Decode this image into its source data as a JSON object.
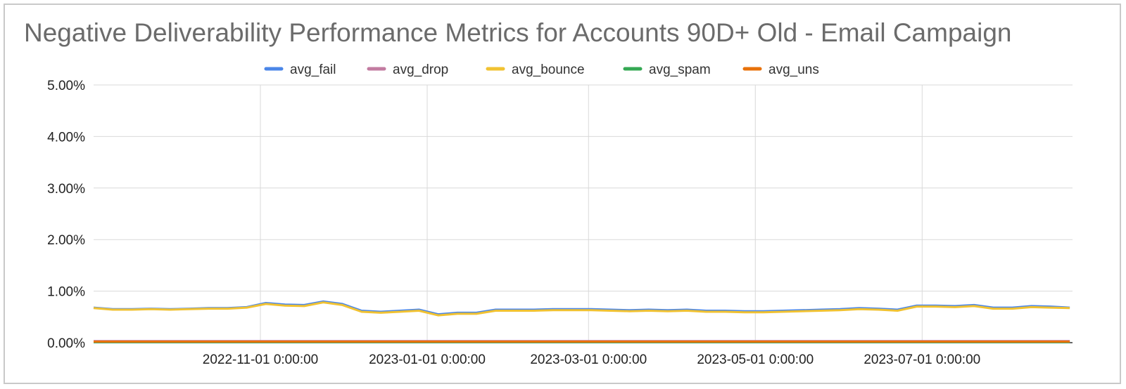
{
  "chart_data": {
    "type": "line",
    "title": "Negative Deliverability Performance Metrics for Accounts 90D+ Old - Email Campaign",
    "xlabel": "",
    "ylabel": "",
    "ylim": [
      0,
      0.05
    ],
    "yticks": [
      "0.00%",
      "1.00%",
      "2.00%",
      "3.00%",
      "4.00%",
      "5.00%"
    ],
    "x_start": "2022-09-01",
    "x_end": "2023-08-25",
    "xticks": [
      {
        "date": "2022-11-01",
        "label": "2022-11-01 0:00:00"
      },
      {
        "date": "2023-01-01",
        "label": "2023-01-01 0:00:00"
      },
      {
        "date": "2023-03-01",
        "label": "2023-03-01 0:00:00"
      },
      {
        "date": "2023-05-01",
        "label": "2023-05-01 0:00:00"
      },
      {
        "date": "2023-07-01",
        "label": "2023-07-01 0:00:00"
      }
    ],
    "grid": true,
    "legend_position": "top",
    "x": [
      "2022-09-01",
      "2022-09-08",
      "2022-09-15",
      "2022-09-22",
      "2022-09-29",
      "2022-10-06",
      "2022-10-13",
      "2022-10-20",
      "2022-10-27",
      "2022-11-03",
      "2022-11-10",
      "2022-11-17",
      "2022-11-24",
      "2022-12-01",
      "2022-12-08",
      "2022-12-15",
      "2022-12-22",
      "2022-12-29",
      "2023-01-05",
      "2023-01-12",
      "2023-01-19",
      "2023-01-26",
      "2023-02-02",
      "2023-02-09",
      "2023-02-16",
      "2023-02-23",
      "2023-03-02",
      "2023-03-09",
      "2023-03-16",
      "2023-03-23",
      "2023-03-30",
      "2023-04-06",
      "2023-04-13",
      "2023-04-20",
      "2023-04-27",
      "2023-05-04",
      "2023-05-11",
      "2023-05-18",
      "2023-05-25",
      "2023-06-01",
      "2023-06-08",
      "2023-06-15",
      "2023-06-22",
      "2023-06-29",
      "2023-07-06",
      "2023-07-13",
      "2023-07-20",
      "2023-07-27",
      "2023-08-03",
      "2023-08-10",
      "2023-08-17",
      "2023-08-24"
    ],
    "series": [
      {
        "name": "avg_fail",
        "color": "#4a86e8",
        "values": [
          0.0068,
          0.0065,
          0.0065,
          0.0066,
          0.0065,
          0.0066,
          0.0067,
          0.0067,
          0.0069,
          0.0077,
          0.0074,
          0.0073,
          0.008,
          0.0075,
          0.0062,
          0.006,
          0.0062,
          0.0064,
          0.0055,
          0.0058,
          0.0058,
          0.0064,
          0.0064,
          0.0064,
          0.0065,
          0.0065,
          0.0065,
          0.0064,
          0.0063,
          0.0064,
          0.0063,
          0.0064,
          0.0062,
          0.0062,
          0.0061,
          0.0061,
          0.0062,
          0.0063,
          0.0064,
          0.0065,
          0.0067,
          0.0066,
          0.0064,
          0.0072,
          0.0072,
          0.0071,
          0.0073,
          0.0068,
          0.0068,
          0.0071,
          0.007,
          0.0068
        ]
      },
      {
        "name": "avg_drop",
        "color": "#c27ba0",
        "values": [
          0.0003,
          0.0003,
          0.0003,
          0.0003,
          0.0003,
          0.0003,
          0.0003,
          0.0003,
          0.0003,
          0.0003,
          0.0003,
          0.0003,
          0.0003,
          0.0003,
          0.0003,
          0.0003,
          0.0003,
          0.0003,
          0.0003,
          0.0003,
          0.0003,
          0.0003,
          0.0003,
          0.0003,
          0.0003,
          0.0003,
          0.0003,
          0.0003,
          0.0003,
          0.0003,
          0.0003,
          0.0003,
          0.0003,
          0.0003,
          0.0003,
          0.0003,
          0.0003,
          0.0003,
          0.0003,
          0.0003,
          0.0003,
          0.0003,
          0.0003,
          0.0003,
          0.0003,
          0.0003,
          0.0003,
          0.0003,
          0.0003,
          0.0003,
          0.0003,
          0.0003
        ]
      },
      {
        "name": "avg_bounce",
        "color": "#f1c232",
        "values": [
          0.0067,
          0.0064,
          0.0064,
          0.0065,
          0.0064,
          0.0065,
          0.0066,
          0.0066,
          0.0068,
          0.0075,
          0.0072,
          0.0071,
          0.0078,
          0.0073,
          0.006,
          0.0058,
          0.006,
          0.0062,
          0.0053,
          0.0056,
          0.0056,
          0.0062,
          0.0062,
          0.0062,
          0.0063,
          0.0063,
          0.0063,
          0.0062,
          0.0061,
          0.0062,
          0.0061,
          0.0062,
          0.006,
          0.006,
          0.0059,
          0.0059,
          0.006,
          0.0061,
          0.0062,
          0.0063,
          0.0065,
          0.0064,
          0.0062,
          0.007,
          0.007,
          0.0069,
          0.0071,
          0.0066,
          0.0066,
          0.0069,
          0.0068,
          0.0067
        ]
      },
      {
        "name": "avg_spam",
        "color": "#34a853",
        "values": [
          0.0001,
          0.0001,
          0.0001,
          0.0001,
          0.0001,
          0.0001,
          0.0001,
          0.0001,
          0.0001,
          0.0001,
          0.0001,
          0.0001,
          0.0001,
          0.0001,
          0.0001,
          0.0001,
          0.0001,
          0.0001,
          0.0001,
          0.0001,
          0.0001,
          0.0001,
          0.0001,
          0.0001,
          0.0001,
          0.0001,
          0.0001,
          0.0001,
          0.0001,
          0.0001,
          0.0001,
          0.0001,
          0.0001,
          0.0001,
          0.0001,
          0.0001,
          0.0001,
          0.0001,
          0.0001,
          0.0001,
          0.0001,
          0.0001,
          0.0001,
          0.0001,
          0.0001,
          0.0001,
          0.0001,
          0.0001,
          0.0001,
          0.0001,
          0.0001,
          0.0001
        ]
      },
      {
        "name": "avg_uns",
        "color": "#e8710a",
        "values": [
          0.0002,
          0.0002,
          0.0002,
          0.0002,
          0.0002,
          0.0002,
          0.0002,
          0.0002,
          0.0002,
          0.0002,
          0.0002,
          0.0002,
          0.0002,
          0.0002,
          0.0002,
          0.0002,
          0.0002,
          0.0002,
          0.0002,
          0.0002,
          0.0002,
          0.0002,
          0.0002,
          0.0002,
          0.0002,
          0.0002,
          0.0002,
          0.0002,
          0.0002,
          0.0002,
          0.0002,
          0.0002,
          0.0002,
          0.0002,
          0.0002,
          0.0002,
          0.0002,
          0.0002,
          0.0002,
          0.0002,
          0.0002,
          0.0002,
          0.0002,
          0.0002,
          0.0002,
          0.0002,
          0.0002,
          0.0002,
          0.0002,
          0.0002,
          0.0002,
          0.0002
        ]
      }
    ]
  }
}
